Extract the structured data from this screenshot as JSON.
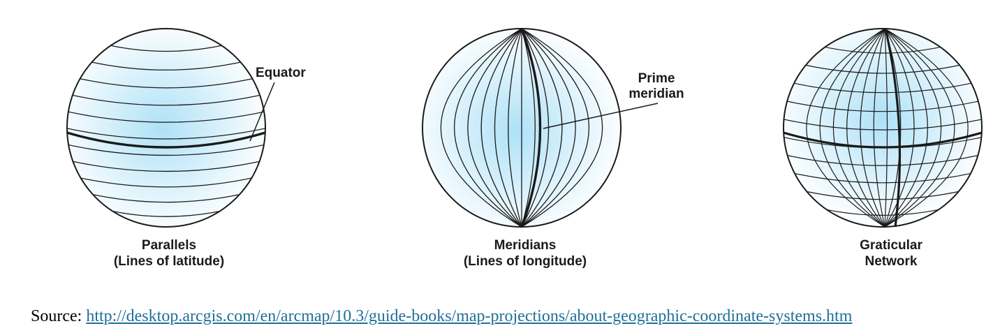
{
  "globes": [
    {
      "id": "parallels",
      "caption_line1": "Parallels",
      "caption_line2": "(Lines of latitude)",
      "callout": "Equator"
    },
    {
      "id": "meridians",
      "caption_line1": "Meridians",
      "caption_line2": "(Lines of longitude)",
      "callout_line1": "Prime",
      "callout_line2": "meridian"
    },
    {
      "id": "graticule",
      "caption_line1": "Graticular",
      "caption_line2": "Network"
    }
  ],
  "source": {
    "prefix": "Source:",
    "url": "http://desktop.arcgis.com/en/arcmap/10.3/guide-books/map-projections/about-geographic-coordinate-systems.htm"
  },
  "colors": {
    "globe_center": "#aee1f7",
    "globe_edge": "#ffffff",
    "line": "#1a1a1a",
    "link": "#1f6f99"
  }
}
